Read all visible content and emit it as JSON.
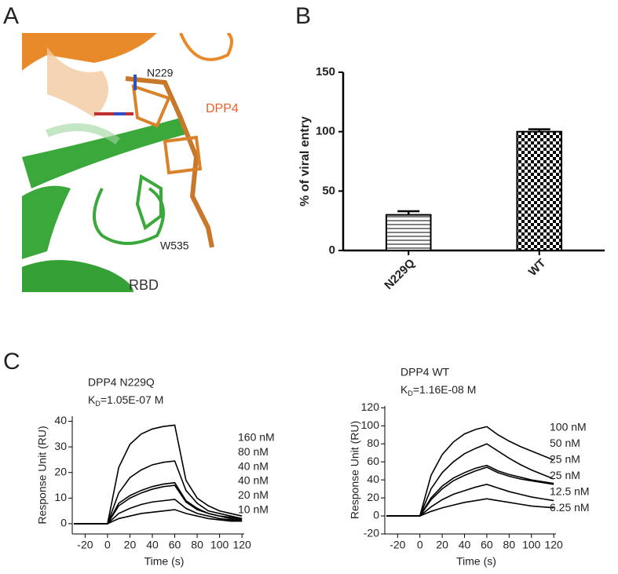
{
  "panel_labels": [
    "A",
    "B",
    "C"
  ],
  "structure_labels": {
    "residue_dpp4": "N229",
    "protein_dpp4": "DPP4",
    "residue_rbd": "W535",
    "protein_rbd": "RBD"
  },
  "chart_data": [
    {
      "type": "bar",
      "ylabel": "% of viral entry",
      "categories": [
        "N229Q",
        "WT"
      ],
      "values": [
        30,
        100
      ],
      "errors": [
        3,
        2
      ],
      "color": "#000000",
      "patterns": [
        "horizontal-lines",
        "checkerboard"
      ],
      "ylim": [
        0,
        150
      ],
      "yticks": [
        0,
        50,
        100,
        150
      ]
    },
    {
      "type": "line",
      "title": "DPP4 N229Q",
      "kd": {
        "symbol": "K",
        "subscript": "D",
        "text": "=1.05E-07 M"
      },
      "xlabel": "Time (s)",
      "ylabel": "Response Unit (RU)",
      "x": [
        -30,
        0,
        10,
        20,
        30,
        40,
        50,
        60,
        70,
        80,
        90,
        100,
        110,
        120
      ],
      "series": [
        {
          "name": "160 nM",
          "color": "#000000",
          "values": [
            0,
            0,
            22,
            31,
            35,
            37,
            38,
            38.5,
            17,
            10,
            7,
            5,
            4,
            3
          ]
        },
        {
          "name": "80 nM",
          "color": "#000000",
          "values": [
            0,
            0,
            12,
            18,
            21,
            23,
            24,
            24.5,
            13,
            8,
            5,
            4,
            3,
            2
          ]
        },
        {
          "name": "40 nM",
          "color": "#000000",
          "values": [
            0,
            0,
            8,
            11,
            13,
            14.5,
            15.5,
            16,
            9,
            6,
            4,
            3,
            2.5,
            2
          ]
        },
        {
          "name": "40 nM",
          "color": "#000000",
          "values": [
            0,
            0,
            7,
            10,
            12,
            13.5,
            14.5,
            15,
            8.5,
            5.5,
            4,
            3,
            2,
            1.5
          ]
        },
        {
          "name": "20 nM",
          "color": "#000000",
          "values": [
            0,
            0,
            4,
            6,
            7.5,
            8.5,
            9,
            9.5,
            6,
            4,
            3,
            2,
            1.5,
            1
          ]
        },
        {
          "name": "10 nM",
          "color": "#000000",
          "values": [
            0,
            0,
            2,
            3,
            4,
            4.5,
            5,
            5.5,
            4,
            3,
            2,
            1.5,
            1,
            1
          ]
        }
      ],
      "xlim": [
        -35,
        122
      ],
      "ylim": [
        -4,
        42
      ],
      "xticks": [
        -20,
        0,
        20,
        40,
        60,
        80,
        100,
        120
      ],
      "yticks": [
        0,
        10,
        20,
        30,
        40
      ]
    },
    {
      "type": "line",
      "title": "DPP4 WT",
      "kd": {
        "symbol": "K",
        "subscript": "D",
        "text": "=1.16E-08 M"
      },
      "xlabel": "Time (s)",
      "ylabel": "Response Unit (RU)",
      "x": [
        -30,
        0,
        10,
        20,
        30,
        40,
        50,
        60,
        70,
        80,
        90,
        100,
        110,
        120
      ],
      "series": [
        {
          "name": "100 nM",
          "color": "#000000",
          "values": [
            0,
            0,
            45,
            68,
            82,
            91,
            96,
            99,
            90,
            83,
            77,
            72,
            67,
            62
          ]
        },
        {
          "name": "50 nM",
          "color": "#000000",
          "values": [
            0,
            0,
            30,
            48,
            60,
            69,
            75,
            80,
            72,
            64,
            57,
            51,
            46,
            41
          ]
        },
        {
          "name": "25 nM",
          "color": "#000000",
          "values": [
            0,
            0,
            20,
            33,
            42,
            48,
            53,
            56,
            50,
            46,
            43,
            40,
            38,
            36
          ]
        },
        {
          "name": "25 nM",
          "color": "#000000",
          "values": [
            0,
            0,
            18,
            30,
            39,
            45,
            50,
            54,
            48,
            44,
            41,
            39,
            37,
            35
          ]
        },
        {
          "name": "12.5 nM",
          "color": "#000000",
          "values": [
            0,
            0,
            10,
            18,
            24,
            28,
            32,
            35,
            31,
            27,
            24,
            21,
            19,
            17
          ]
        },
        {
          "name": "6.25 nM",
          "color": "#000000",
          "values": [
            0,
            0,
            5,
            9,
            12,
            15,
            17,
            19,
            17,
            15,
            13,
            11,
            10,
            9
          ]
        }
      ],
      "xlim": [
        -35,
        122
      ],
      "ylim": [
        -20,
        122
      ],
      "xticks": [
        -20,
        0,
        20,
        40,
        60,
        80,
        100,
        120
      ],
      "yticks": [
        -20,
        0,
        20,
        40,
        60,
        80,
        100,
        120
      ]
    }
  ]
}
